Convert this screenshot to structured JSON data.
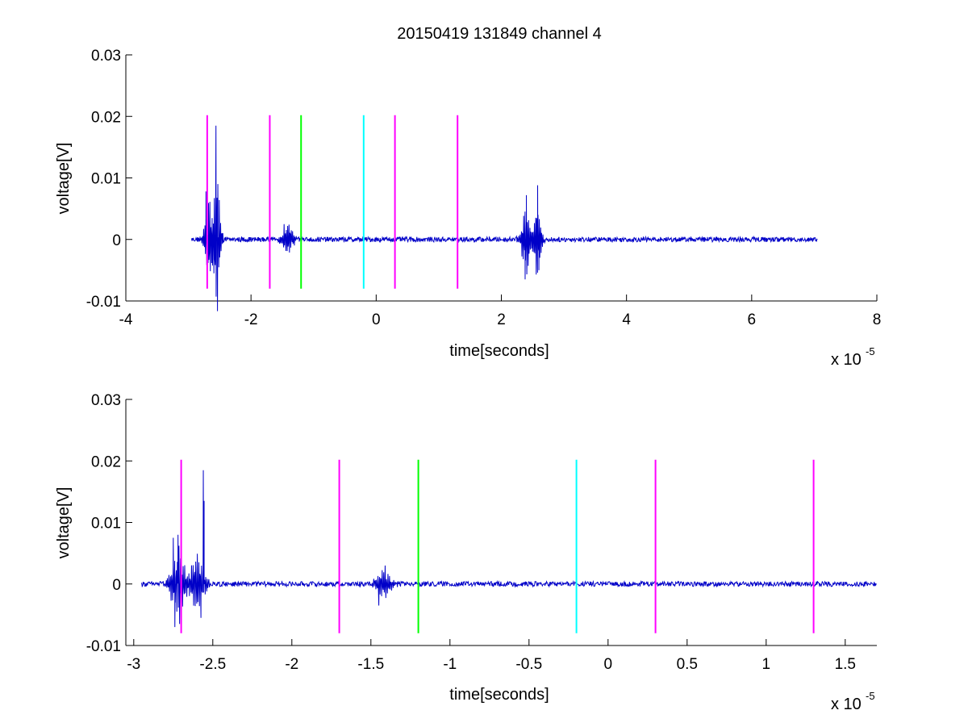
{
  "chart_data": [
    {
      "type": "line",
      "title": "20150419 131849 channel 4",
      "xlabel": "time[seconds]",
      "ylabel": "voltage[V]",
      "x_multiplier_label": "x 10",
      "x_multiplier_exponent": "-5",
      "xlim": [
        -4,
        8
      ],
      "ylim": [
        -0.01,
        0.03
      ],
      "xticks": [
        -4,
        -2,
        0,
        2,
        4,
        6,
        8
      ],
      "xtick_labels": [
        "-4",
        "-2",
        "0",
        "2",
        "4",
        "6",
        "8"
      ],
      "yticks": [
        -0.01,
        0,
        0.01,
        0.02,
        0.03
      ],
      "ytick_labels": [
        "-0.01",
        "0",
        "0.01",
        "0.02",
        "0.03"
      ],
      "grid": false,
      "series": [
        {
          "color": "#0000c8",
          "x_range": [
            -2.95,
            7.05
          ],
          "bursts": [
            {
              "center": -2.68,
              "width": 0.07,
              "amp": 0.0075
            },
            {
              "center": -2.55,
              "width": 0.06,
              "amp": 0.012
            },
            {
              "center": -1.42,
              "width": 0.1,
              "amp": 0.003
            },
            {
              "center": 2.4,
              "width": 0.08,
              "amp": 0.006
            },
            {
              "center": 2.57,
              "width": 0.07,
              "amp": 0.0065
            }
          ],
          "spikes": [
            {
              "x": -2.72,
              "y": 0.0078
            },
            {
              "x": -2.7,
              "y": -0.0065
            },
            {
              "x": -2.56,
              "y": 0.0185
            },
            {
              "x": -2.555,
              "y": -0.005
            },
            {
              "x": -2.53,
              "y": 0.009
            },
            {
              "x": 2.38,
              "y": -0.0065
            },
            {
              "x": 2.4,
              "y": 0.0072
            },
            {
              "x": 2.58,
              "y": 0.0088
            },
            {
              "x": 2.6,
              "y": -0.005
            }
          ],
          "noise_amplitude": 0.0004
        }
      ],
      "vertical_markers": [
        {
          "x": -2.7,
          "y_range": [
            -0.008,
            0.0202
          ],
          "color": "#ff00ff"
        },
        {
          "x": -1.7,
          "y_range": [
            -0.008,
            0.0202
          ],
          "color": "#ff00ff"
        },
        {
          "x": -1.2,
          "y_range": [
            -0.008,
            0.0202
          ],
          "color": "#00ff00"
        },
        {
          "x": -0.2,
          "y_range": [
            -0.008,
            0.0202
          ],
          "color": "#00ffff"
        },
        {
          "x": 0.3,
          "y_range": [
            -0.008,
            0.0202
          ],
          "color": "#ff00ff"
        },
        {
          "x": 1.3,
          "y_range": [
            -0.008,
            0.0202
          ],
          "color": "#ff00ff"
        }
      ]
    },
    {
      "type": "line",
      "title": "",
      "xlabel": "time[seconds]",
      "ylabel": "voltage[V]",
      "x_multiplier_label": "x 10",
      "x_multiplier_exponent": "-5",
      "xlim": [
        -3.05,
        1.7
      ],
      "ylim": [
        -0.01,
        0.03
      ],
      "xticks": [
        -3,
        -2.5,
        -2,
        -1.5,
        -1,
        -0.5,
        0,
        0.5,
        1,
        1.5
      ],
      "xtick_labels": [
        "-3",
        "-2.5",
        "-2",
        "-1.5",
        "-1",
        "-0.5",
        "0",
        "0.5",
        "1",
        "1.5"
      ],
      "yticks": [
        -0.01,
        0,
        0.01,
        0.02,
        0.03
      ],
      "ytick_labels": [
        "-0.01",
        "0",
        "0.01",
        "0.02",
        "0.03"
      ],
      "grid": false,
      "series": [
        {
          "color": "#0000c8",
          "x_range": [
            -2.95,
            1.7
          ],
          "bursts": [
            {
              "center": -2.72,
              "width": 0.05,
              "amp": 0.006
            },
            {
              "center": -2.6,
              "width": 0.05,
              "amp": 0.005
            },
            {
              "center": -1.42,
              "width": 0.06,
              "amp": 0.0025
            }
          ],
          "spikes": [
            {
              "x": -2.75,
              "y": 0.0075
            },
            {
              "x": -2.74,
              "y": -0.007
            },
            {
              "x": -2.72,
              "y": 0.008
            },
            {
              "x": -2.71,
              "y": -0.0065
            },
            {
              "x": -2.575,
              "y": -0.0055
            },
            {
              "x": -2.56,
              "y": 0.0185
            },
            {
              "x": -2.555,
              "y": 0.0135
            },
            {
              "x": -1.45,
              "y": -0.0035
            },
            {
              "x": -1.41,
              "y": 0.003
            }
          ],
          "noise_amplitude": 0.0004
        }
      ],
      "vertical_markers": [
        {
          "x": -2.7,
          "y_range": [
            -0.008,
            0.0202
          ],
          "color": "#ff00ff"
        },
        {
          "x": -1.7,
          "y_range": [
            -0.008,
            0.0202
          ],
          "color": "#ff00ff"
        },
        {
          "x": -1.2,
          "y_range": [
            -0.008,
            0.0202
          ],
          "color": "#00ff00"
        },
        {
          "x": -0.2,
          "y_range": [
            -0.008,
            0.0202
          ],
          "color": "#00ffff"
        },
        {
          "x": 0.3,
          "y_range": [
            -0.008,
            0.0202
          ],
          "color": "#ff00ff"
        },
        {
          "x": 1.3,
          "y_range": [
            -0.008,
            0.0202
          ],
          "color": "#ff00ff"
        }
      ]
    }
  ]
}
